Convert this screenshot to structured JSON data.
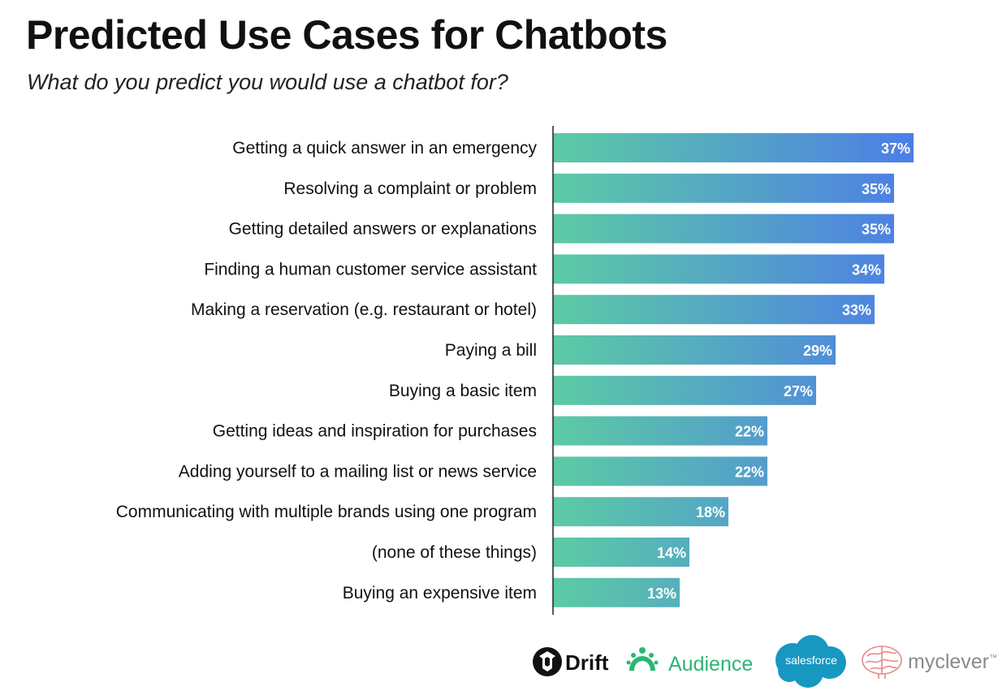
{
  "title": "Predicted Use Cases for Chatbots",
  "subtitle": "What do you predict you would use a chatbot for?",
  "colors": {
    "bar_gradient_start": "#5CCBA4",
    "bar_gradient_end": "#4B77EC",
    "drift": "#111111",
    "audience": "#2BB673",
    "salesforce": "#1798C1",
    "myclever": "#E58A8A"
  },
  "chart_data": {
    "type": "bar",
    "orientation": "horizontal",
    "title": "Predicted Use Cases for Chatbots",
    "subtitle": "What do you predict you would use a chatbot for?",
    "categories": [
      "Getting a quick answer in an emergency",
      "Resolving a complaint or problem",
      "Getting detailed answers or explanations",
      "Finding a human customer service assistant",
      "Making a reservation (e.g. restaurant or hotel)",
      "Paying a bill",
      "Buying a basic item",
      "Getting ideas and inspiration for purchases",
      "Adding yourself to a mailing list or news service",
      "Communicating with multiple brands using one program",
      "(none of these things)",
      "Buying an expensive item"
    ],
    "values": [
      37,
      35,
      35,
      34,
      33,
      29,
      27,
      22,
      22,
      18,
      14,
      13
    ],
    "value_labels": [
      "37%",
      "35%",
      "35%",
      "34%",
      "33%",
      "29%",
      "27%",
      "22%",
      "22%",
      "18%",
      "14%",
      "13%"
    ],
    "unit": "%",
    "xlim": [
      0,
      40
    ],
    "grid": false,
    "legend": "none"
  },
  "logos": {
    "drift": "Drift",
    "audience": "Audience",
    "salesforce": "salesforce",
    "myclever": "myclever",
    "myclever_mark": "™"
  }
}
